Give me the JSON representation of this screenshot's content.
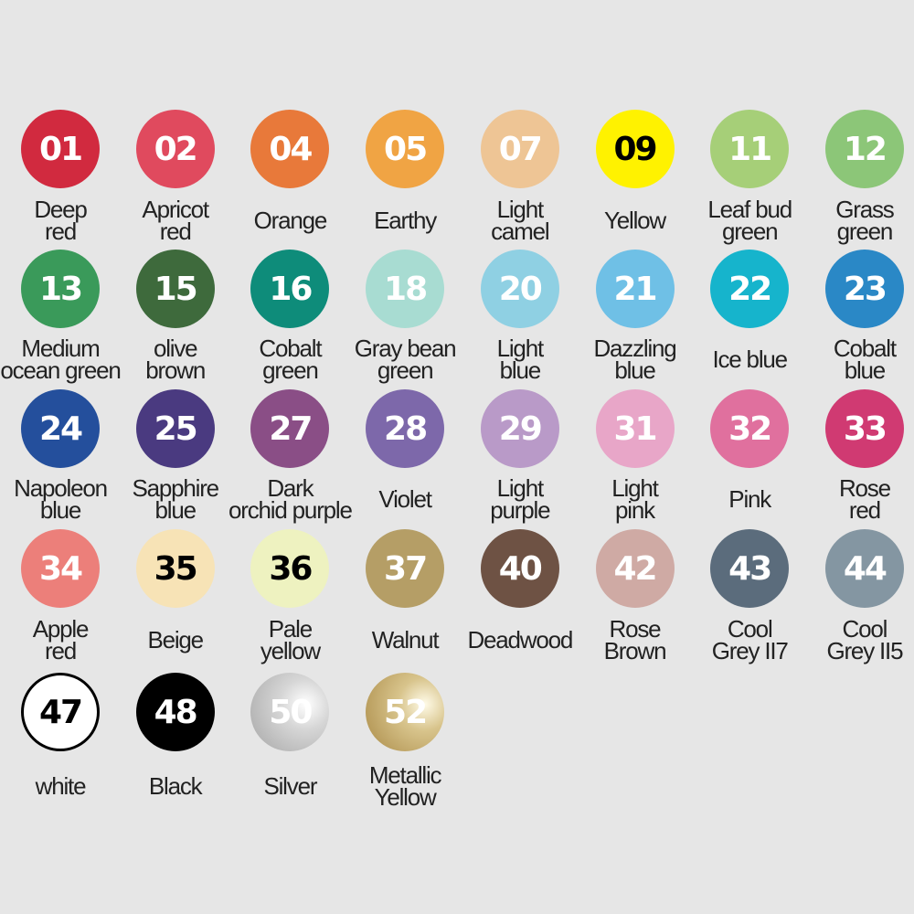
{
  "swatches": [
    {
      "code": "01",
      "name": "Deep\nred",
      "color": "#d12a3f"
    },
    {
      "code": "02",
      "name": "Apricot\nred",
      "color": "#e04a5e"
    },
    {
      "code": "04",
      "name": "Orange",
      "color": "#e8793a"
    },
    {
      "code": "05",
      "name": "Earthy",
      "color": "#f0a444"
    },
    {
      "code": "07",
      "name": "Light\ncamel",
      "color": "#eec595"
    },
    {
      "code": "09",
      "name": "Yellow",
      "color": "#fff200",
      "text_color": "#000000"
    },
    {
      "code": "11",
      "name": "Leaf bud\ngreen",
      "color": "#a6cf78"
    },
    {
      "code": "12",
      "name": "Grass\ngreen",
      "color": "#8cc678"
    },
    {
      "code": "13",
      "name": "Medium\nocean green",
      "color": "#3a9a5a"
    },
    {
      "code": "15",
      "name": "olive\nbrown",
      "color": "#3e6a3c"
    },
    {
      "code": "16",
      "name": "Cobalt\ngreen",
      "color": "#0e8c7a"
    },
    {
      "code": "18",
      "name": "Gray bean\ngreen",
      "color": "#a8dcd2"
    },
    {
      "code": "20",
      "name": "Light\nblue",
      "color": "#8fd0e3"
    },
    {
      "code": "21",
      "name": "Dazzling\nblue",
      "color": "#6fc0e6"
    },
    {
      "code": "22",
      "name": "Ice blue",
      "color": "#16b4cc"
    },
    {
      "code": "23",
      "name": "Cobalt\nblue",
      "color": "#2a88c6"
    },
    {
      "code": "24",
      "name": "Napoleon\nblue",
      "color": "#244f9c"
    },
    {
      "code": "25",
      "name": "Sapphire\nblue",
      "color": "#4a3a80"
    },
    {
      "code": "27",
      "name": "Dark\norchid purple",
      "color": "#8a4e86"
    },
    {
      "code": "28",
      "name": "Violet",
      "color": "#7d68aa"
    },
    {
      "code": "29",
      "name": "Light\npurple",
      "color": "#b99ac8"
    },
    {
      "code": "31",
      "name": "Light\npink",
      "color": "#e8a6c8"
    },
    {
      "code": "32",
      "name": "Pink",
      "color": "#e0709e"
    },
    {
      "code": "33",
      "name": "Rose\nred",
      "color": "#d03a72"
    },
    {
      "code": "34",
      "name": "Apple\nred",
      "color": "#ec7f7a"
    },
    {
      "code": "35",
      "name": "Beige",
      "color": "#f7e3b6",
      "text_color": "#000000"
    },
    {
      "code": "36",
      "name": "Pale\nyellow",
      "color": "#eef2c0",
      "text_color": "#000000"
    },
    {
      "code": "37",
      "name": "Walnut",
      "color": "#b59e66"
    },
    {
      "code": "40",
      "name": "Deadwood",
      "color": "#6e5244"
    },
    {
      "code": "42",
      "name": "Rose\nBrown",
      "color": "#cfaaa4"
    },
    {
      "code": "43",
      "name": "Cool\nGrey II7",
      "color": "#5b6c7c"
    },
    {
      "code": "44",
      "name": "Cool\nGrey II5",
      "color": "#8496a2"
    },
    {
      "code": "47",
      "name": "white",
      "color": "#ffffff",
      "text_color": "#000000",
      "border": "#000000"
    },
    {
      "code": "48",
      "name": "Black",
      "color": "#000000"
    },
    {
      "code": "50",
      "name": "Silver",
      "color": "#c8c8c8",
      "finish": "metallic-silver"
    },
    {
      "code": "52",
      "name": "Metallic\nYellow",
      "color": "#c0a868",
      "finish": "metallic-gold"
    }
  ]
}
